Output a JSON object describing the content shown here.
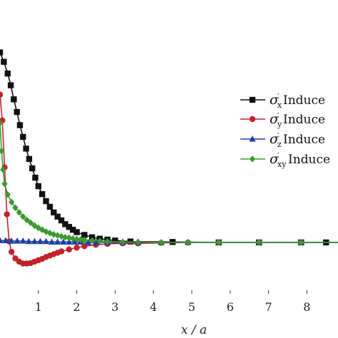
{
  "chart_data": {
    "type": "line",
    "xlabel": "x / a",
    "ylabel": "",
    "xlim": [
      -0.05,
      9.1
    ],
    "ylim": [
      -0.62,
      4.4
    ],
    "xticks": [
      1,
      2,
      3,
      4,
      5,
      6,
      7,
      8
    ],
    "grid": false,
    "legend_position": "right",
    "series": [
      {
        "sym": "σ",
        "sub": "x",
        "prime": "′",
        "label": "Induce",
        "color": "#111111",
        "marker": "square",
        "x": [
          0.0,
          0.1,
          0.2,
          0.28,
          0.36,
          0.44,
          0.52,
          0.6,
          0.68,
          0.76,
          0.84,
          0.92,
          1.0,
          1.1,
          1.2,
          1.3,
          1.4,
          1.5,
          1.6,
          1.7,
          1.8,
          1.9,
          2.0,
          2.2,
          2.4,
          2.6,
          2.8,
          3.0,
          3.4,
          4.5,
          5.7,
          6.75,
          7.85,
          8.5,
          9.05
        ],
        "y": [
          4.05,
          3.85,
          3.6,
          3.35,
          3.05,
          2.78,
          2.5,
          2.25,
          2.0,
          1.78,
          1.58,
          1.38,
          1.2,
          1.03,
          0.88,
          0.76,
          0.64,
          0.55,
          0.47,
          0.39,
          0.33,
          0.27,
          0.22,
          0.16,
          0.11,
          0.08,
          0.06,
          0.04,
          0.02,
          0.01,
          0.0,
          0.0,
          0.0,
          0.0,
          0.0
        ]
      },
      {
        "sym": "σ",
        "sub": "y",
        "prime": "′",
        "label": "Induce",
        "color": "#c0232b",
        "marker": "circle",
        "x": [
          0.0,
          0.06,
          0.12,
          0.18,
          0.24,
          0.3,
          0.4,
          0.5,
          0.6,
          0.7,
          0.8,
          0.9,
          1.0,
          1.1,
          1.2,
          1.3,
          1.4,
          1.5,
          1.6,
          1.8,
          2.0,
          2.2,
          2.5,
          2.8,
          3.2,
          3.6,
          4.2,
          4.9,
          5.7,
          6.75,
          7.85,
          9.05
        ],
        "y": [
          3.15,
          2.6,
          1.6,
          0.6,
          0.02,
          -0.2,
          -0.34,
          -0.41,
          -0.45,
          -0.45,
          -0.44,
          -0.41,
          -0.38,
          -0.35,
          -0.31,
          -0.28,
          -0.25,
          -0.22,
          -0.19,
          -0.15,
          -0.11,
          -0.08,
          -0.05,
          -0.03,
          -0.02,
          -0.02,
          -0.01,
          0.0,
          0.0,
          0.0,
          0.0,
          0.0
        ]
      },
      {
        "sym": "σ",
        "sub": "z",
        "prime": "′",
        "label": "Induce",
        "color": "#2040a0",
        "marker": "triangle",
        "x": [
          0.0,
          0.15,
          0.3,
          0.45,
          0.6,
          0.75,
          0.9,
          1.05,
          1.2,
          1.35,
          1.5,
          1.65,
          1.8,
          1.95,
          2.1,
          2.3,
          2.5,
          2.8,
          3.2,
          3.6,
          4.2,
          4.9,
          5.7,
          6.75,
          7.85,
          9.05
        ],
        "y": [
          0.04,
          0.04,
          0.03,
          0.03,
          0.03,
          0.02,
          0.02,
          0.02,
          0.02,
          0.01,
          0.01,
          0.01,
          0.01,
          0.01,
          0.01,
          0.0,
          0.0,
          0.0,
          0.0,
          0.0,
          0.0,
          0.0,
          0.0,
          0.0,
          0.0,
          0.0
        ]
      },
      {
        "sym": "σ",
        "sub": "xy",
        "prime": "′",
        "label": "Induce",
        "color": "#3c9a2e",
        "marker": "diamond",
        "x": [
          0.0,
          0.04,
          0.08,
          0.12,
          0.2,
          0.3,
          0.4,
          0.5,
          0.6,
          0.7,
          0.8,
          0.9,
          1.0,
          1.1,
          1.2,
          1.3,
          1.4,
          1.5,
          1.6,
          1.7,
          1.8,
          1.9,
          2.0,
          2.1,
          2.2,
          2.4,
          2.6,
          2.8,
          3.2,
          3.6,
          4.2,
          4.9,
          5.7,
          6.75,
          7.85,
          9.05
        ],
        "y": [
          2.55,
          1.95,
          1.55,
          1.25,
          1.02,
          0.86,
          0.74,
          0.64,
          0.55,
          0.48,
          0.42,
          0.36,
          0.31,
          0.27,
          0.23,
          0.2,
          0.17,
          0.15,
          0.13,
          0.11,
          0.1,
          0.08,
          0.07,
          0.06,
          0.05,
          0.04,
          0.03,
          0.02,
          0.01,
          0.01,
          0.0,
          0.0,
          0.0,
          0.0,
          0.0,
          0.0
        ]
      }
    ]
  }
}
